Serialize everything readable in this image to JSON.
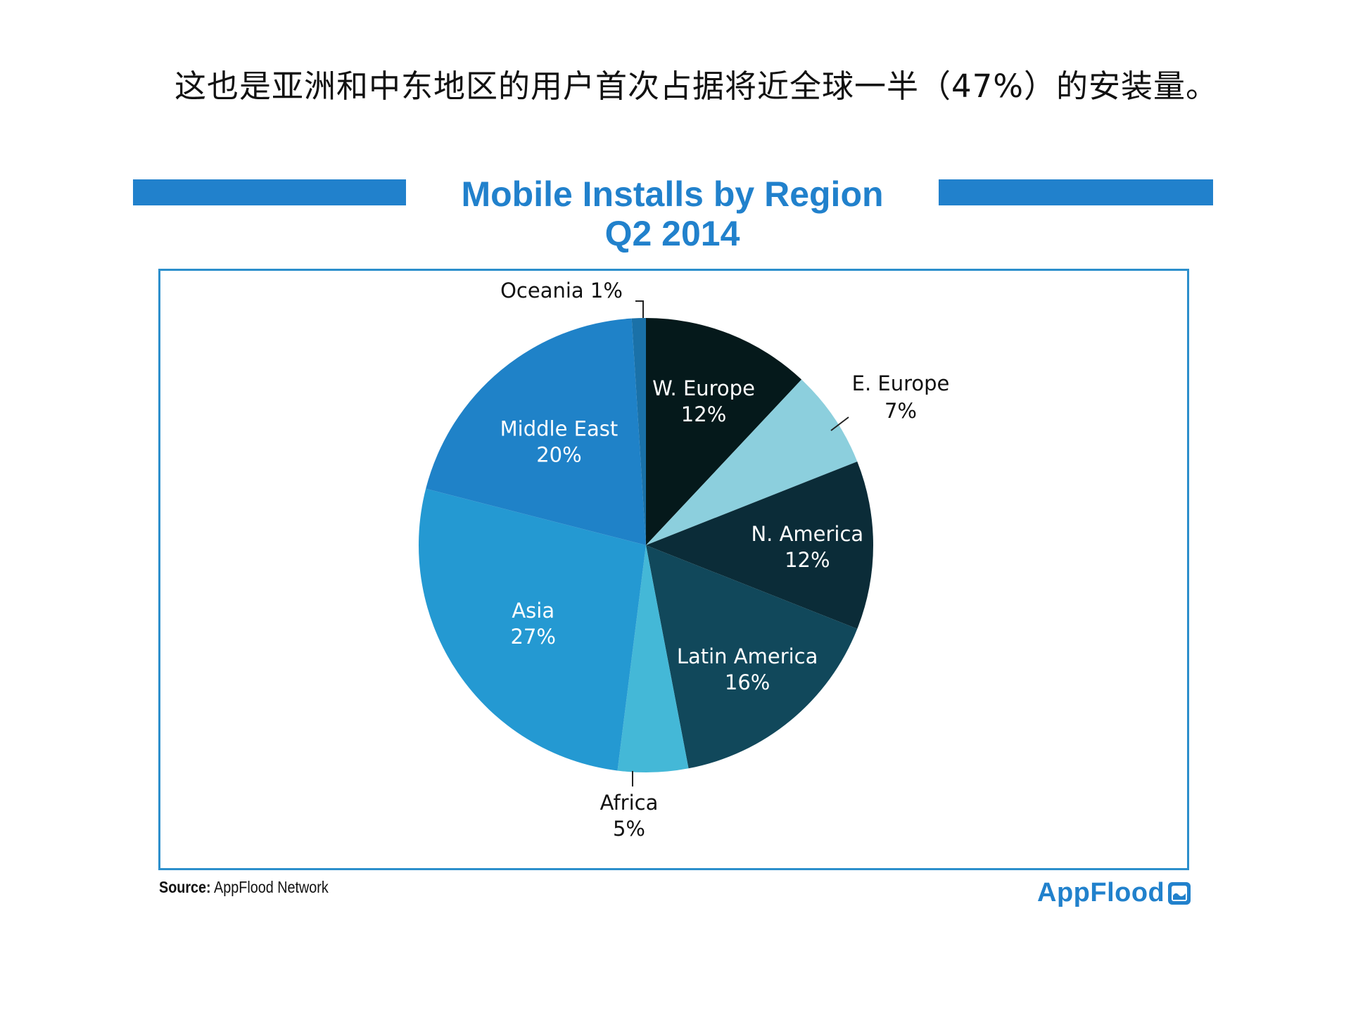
{
  "headline": "这也是亚洲和中东地区的用户首次占据将近全球一半（47%）的安装量。",
  "chart_data": {
    "type": "pie",
    "title": "Mobile Installs by Region",
    "subtitle": "Q2 2014",
    "unit": "%",
    "slices": [
      {
        "label": "W. Europe",
        "value": 12,
        "color": "#05191b"
      },
      {
        "label": "E. Europe",
        "value": 7,
        "color": "#8ccfdd"
      },
      {
        "label": "N. America",
        "value": 12,
        "color": "#0b2c38"
      },
      {
        "label": "Latin America",
        "value": 16,
        "color": "#11485b"
      },
      {
        "label": "Africa",
        "value": 5,
        "color": "#44b8d7"
      },
      {
        "label": "Asia",
        "value": 27,
        "color": "#2499d2"
      },
      {
        "label": "Middle East",
        "value": 20,
        "color": "#1f82c8"
      },
      {
        "label": "Oceania",
        "value": 1,
        "color": "#1a71a8"
      }
    ]
  },
  "source": {
    "label": "Source:",
    "text": "AppFlood Network"
  },
  "logo": {
    "text": "AppFlood",
    "icon": "appflood-logo-icon"
  },
  "colors": {
    "accent": "#2181cc",
    "frame": "#2c8fcc"
  }
}
